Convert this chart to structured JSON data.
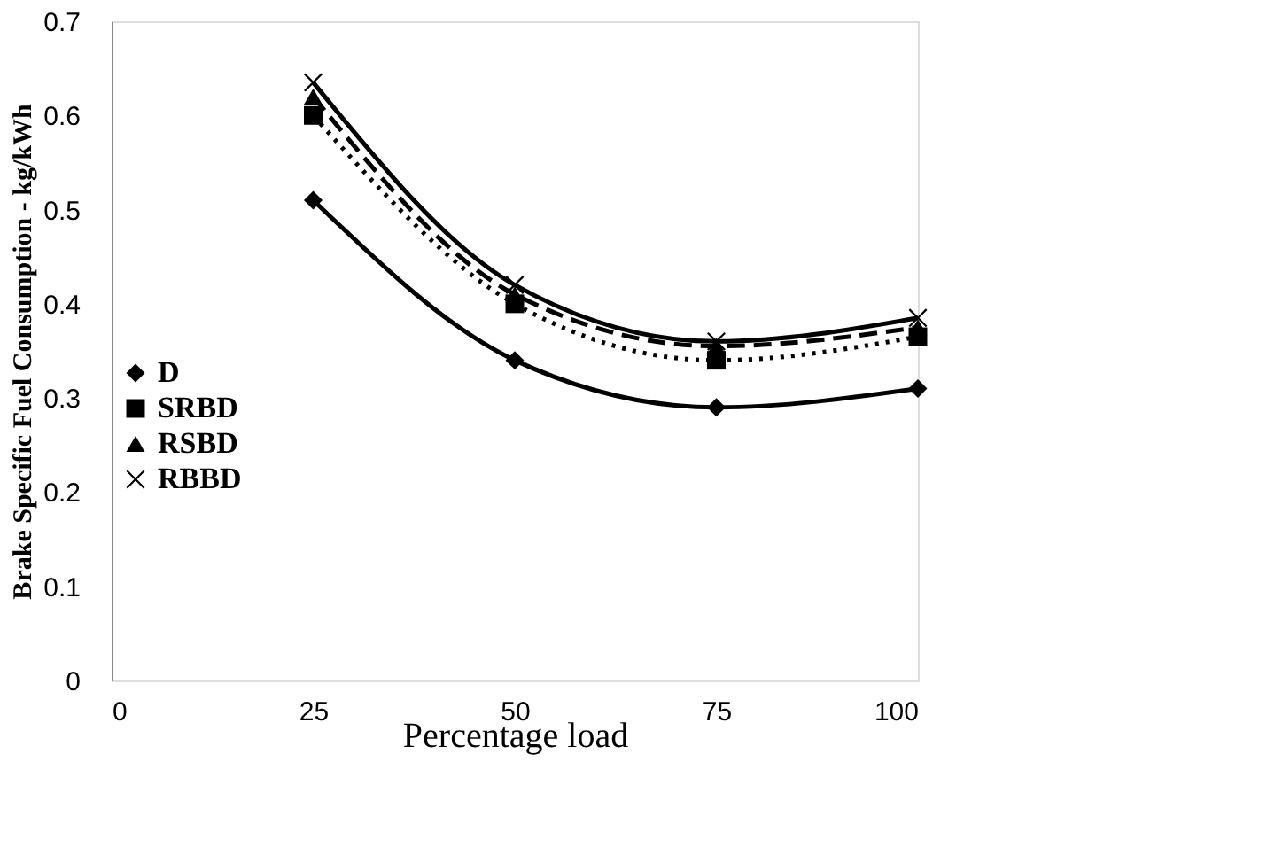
{
  "chart_data": {
    "type": "line",
    "xlabel": "Percentage load",
    "ylabel": "Brake Specific Fuel Consumption - kg/kWh",
    "x": [
      25,
      50,
      75,
      100
    ],
    "series": [
      {
        "name": "D",
        "color": "#000000",
        "marker": "diamond",
        "line_style": "solid",
        "values": [
          0.51,
          0.34,
          0.29,
          0.31
        ]
      },
      {
        "name": "SRBD",
        "color": "#000000",
        "marker": "square",
        "line_style": "dotted",
        "values": [
          0.6,
          0.4,
          0.34,
          0.365
        ]
      },
      {
        "name": "RSBD",
        "color": "#000000",
        "marker": "triangle",
        "line_style": "dashed",
        "values": [
          0.62,
          0.41,
          0.355,
          0.375
        ]
      },
      {
        "name": "RBBD",
        "color": "#000000",
        "marker": "cross",
        "line_style": "solid",
        "values": [
          0.635,
          0.42,
          0.36,
          0.385
        ]
      }
    ],
    "xlim": [
      0,
      100
    ],
    "xticks": [
      0,
      25,
      50,
      75,
      100
    ],
    "ylim": [
      0,
      0.7
    ],
    "yticks": [
      0,
      0.1,
      0.2,
      0.3,
      0.4,
      0.5,
      0.6,
      0.7
    ],
    "grid": false,
    "legend": "left"
  }
}
